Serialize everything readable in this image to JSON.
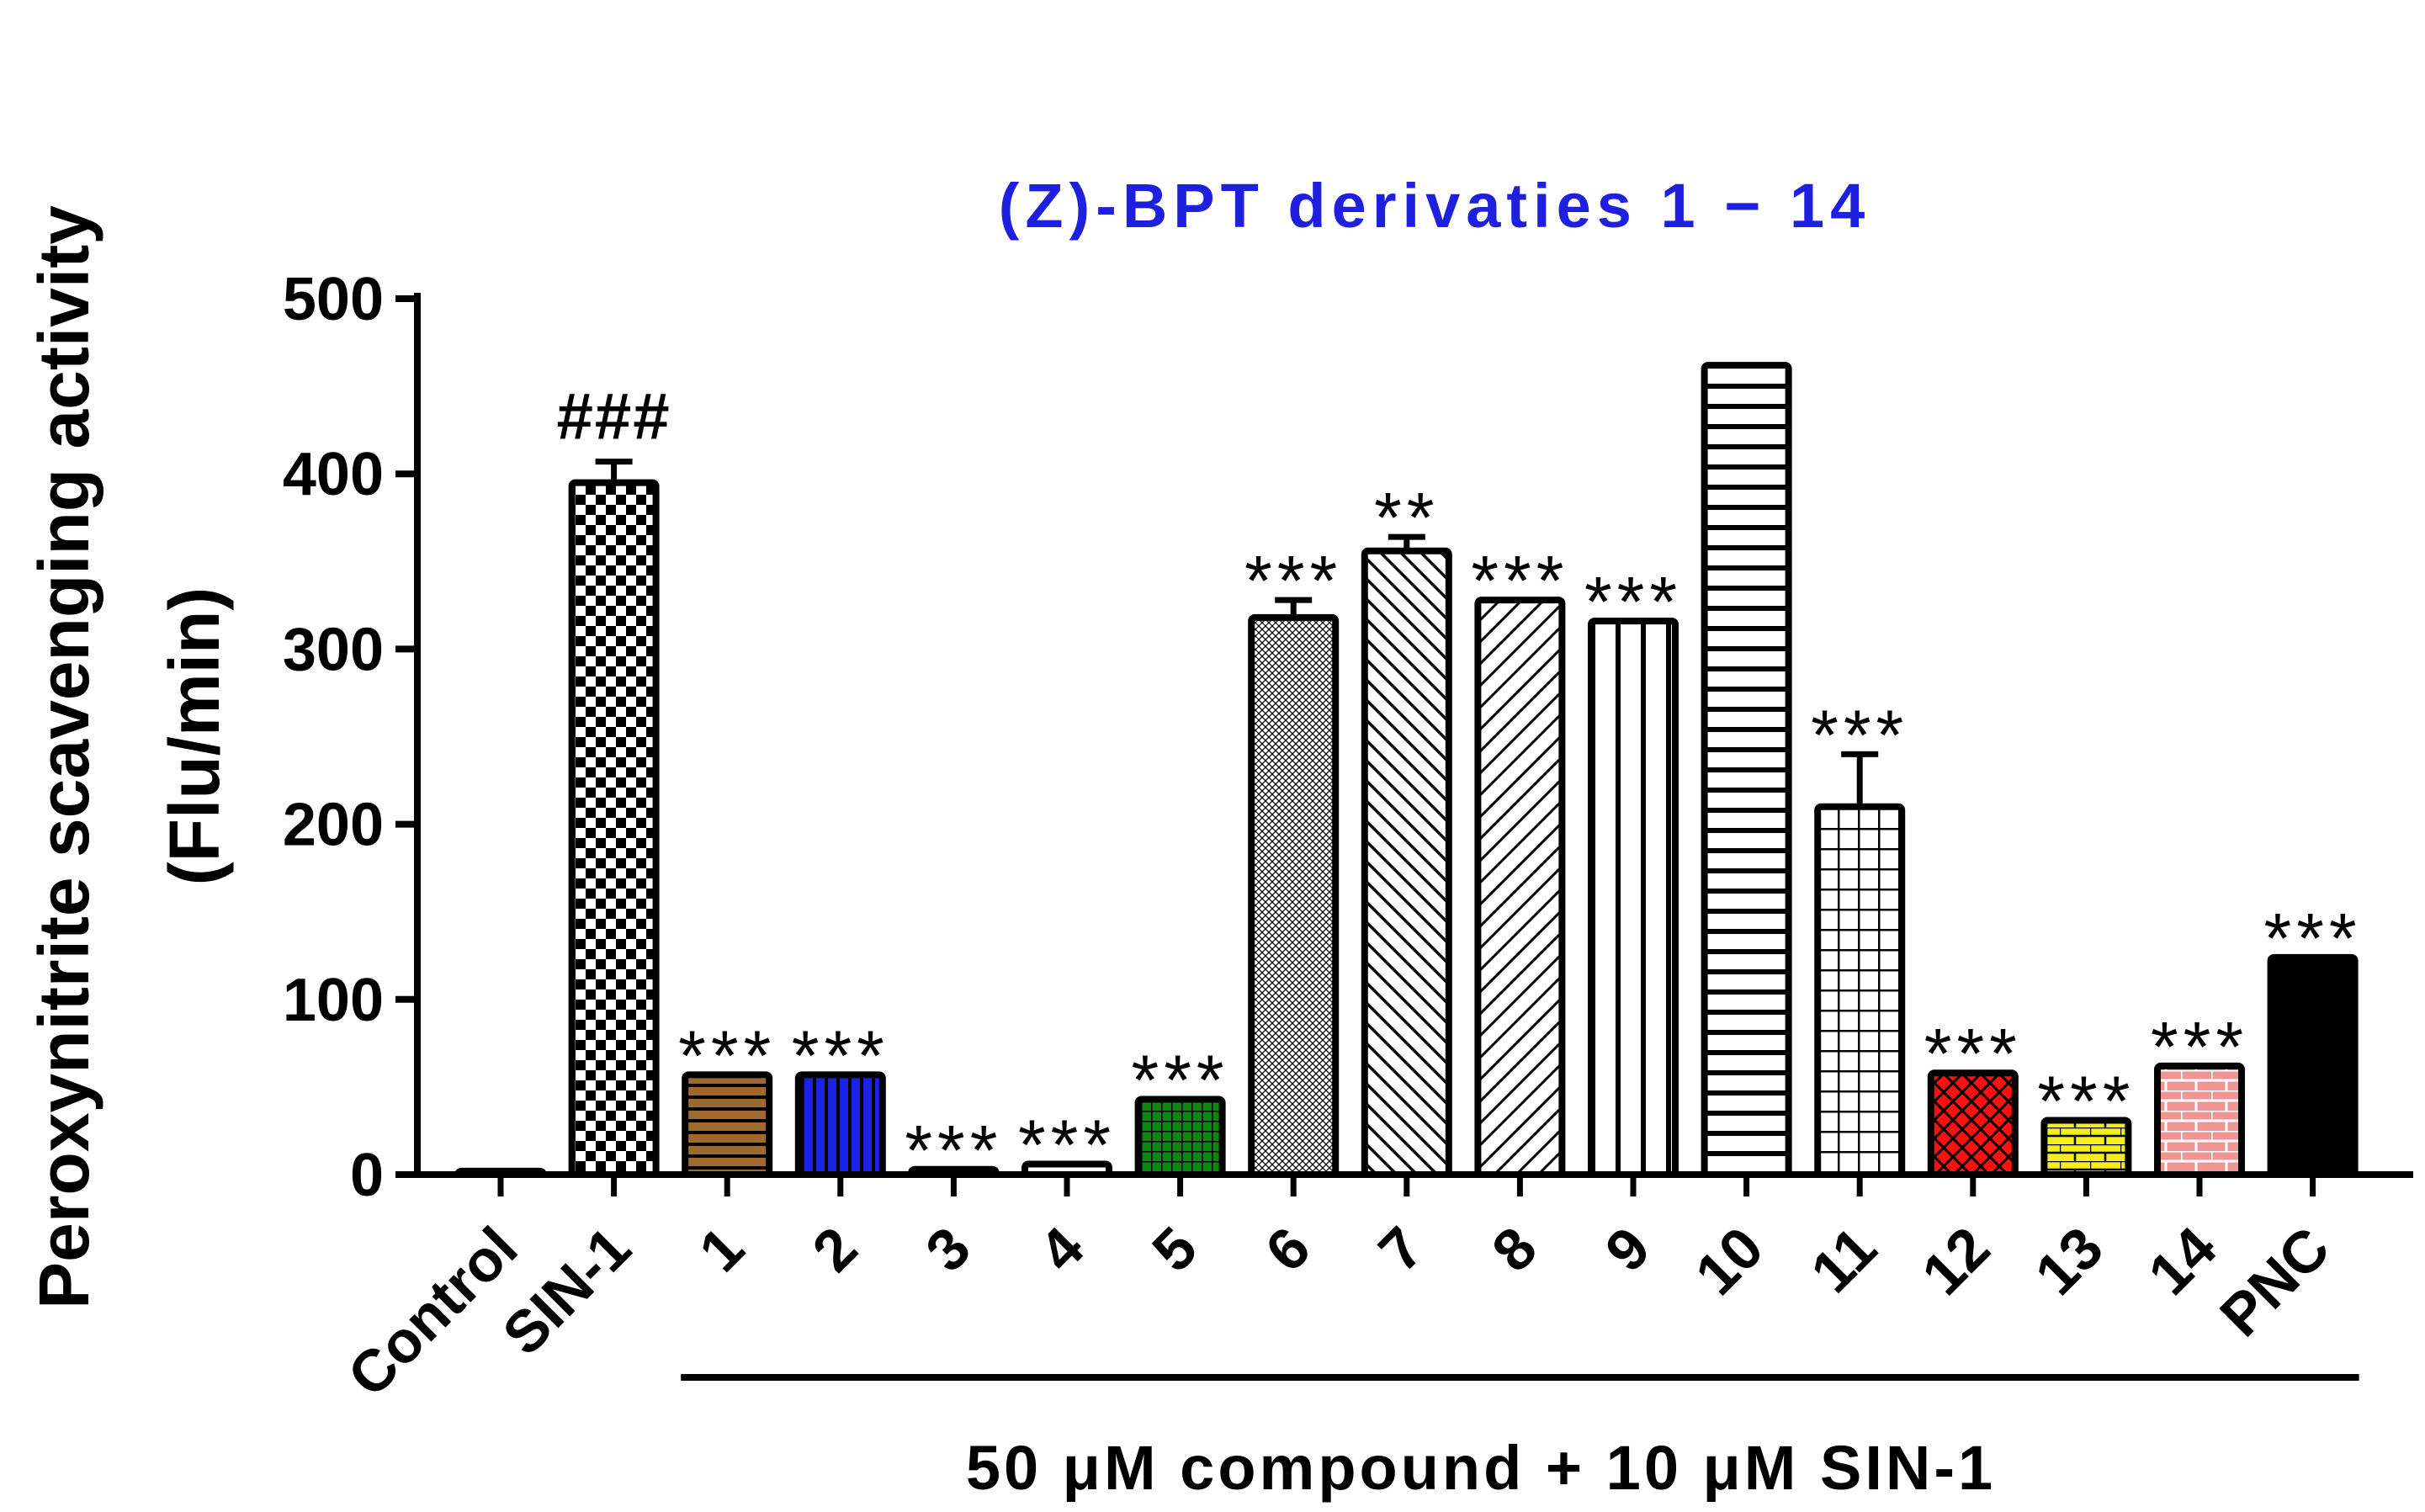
{
  "chart_data": {
    "type": "bar",
    "title": "(Z)-BPT derivaties 1 − 14",
    "title_color": "#1f1fe0",
    "ylabel_line1": "Peroxynitrite scavenging activity",
    "ylabel_line2": "(Flu/min)",
    "xlabel": "50 μM compound + 10 μM SIN-1",
    "ylim": [
      0,
      500
    ],
    "yticks": [
      0,
      100,
      200,
      300,
      400,
      500
    ],
    "categories": [
      "Control",
      "SIN-1",
      "1",
      "2",
      "3",
      "4",
      "5",
      "6",
      "7",
      "8",
      "9",
      "10",
      "11",
      "12",
      "13",
      "14",
      "PNC"
    ],
    "values": [
      2,
      395,
      57,
      57,
      3,
      6,
      43,
      318,
      356,
      328,
      316,
      462,
      210,
      58,
      31,
      62,
      124
    ],
    "errors": [
      0,
      12,
      0,
      0,
      0,
      0,
      0,
      10,
      8,
      0,
      0,
      0,
      30,
      0,
      0,
      0,
      0
    ],
    "annotations": [
      "",
      "###",
      "***",
      "***",
      "***",
      "***",
      "***",
      "***",
      "**",
      "***",
      "***",
      "",
      "***",
      "***",
      "***",
      "***",
      "***"
    ],
    "fills": [
      "hollow",
      "checker",
      "hlines",
      "vlines",
      "hollow",
      "hollow",
      "grid",
      "dots",
      "diag-back",
      "diag-fwd",
      "vwide",
      "hwide",
      "gridwide",
      "crosshatch",
      "brick-yellow",
      "brick-pink",
      "solid"
    ],
    "colors": [
      "#ffffff",
      "#000000",
      "#a0692e",
      "#1a22e6",
      "#ffffff",
      "#ffffff",
      "#0a8a0a",
      "#000000",
      "#000000",
      "#000000",
      "#000000",
      "#000000",
      "#000000",
      "#ff1010",
      "#f2ef1a",
      "#f29494",
      "#000000"
    ],
    "bracket_from": "1",
    "bracket_to": "PNC"
  }
}
